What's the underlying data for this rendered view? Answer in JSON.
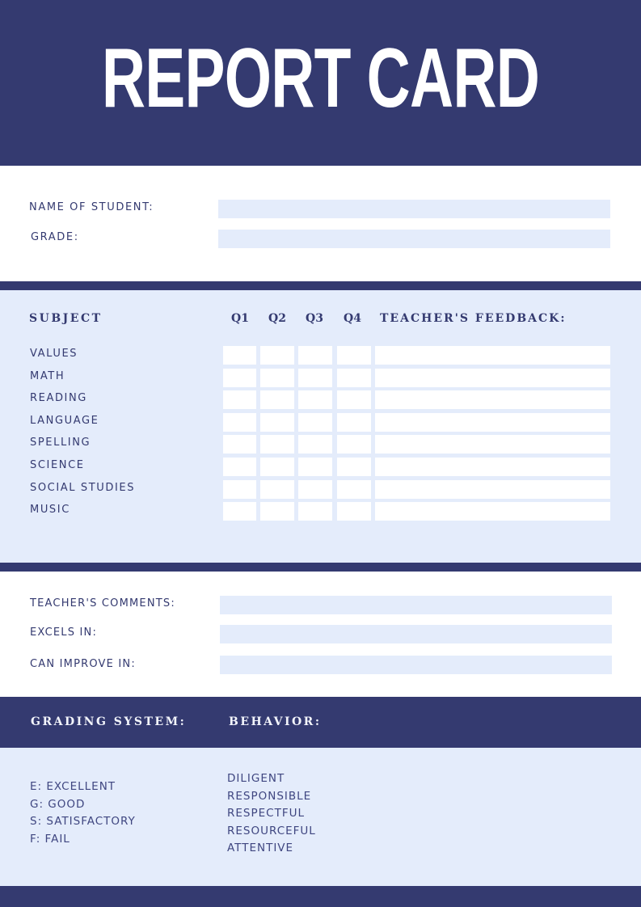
{
  "title": "REPORT CARD",
  "student": {
    "name_label": "NAME OF STUDENT:",
    "grade_label": "GRADE:"
  },
  "table": {
    "headers": {
      "subject": "SUBJECT",
      "q1": "Q1",
      "q2": "Q2",
      "q3": "Q3",
      "q4": "Q4",
      "feedback": "TEACHER'S FEEDBACK:"
    },
    "subjects": [
      "VALUES",
      "MATH",
      "READING",
      "LANGUAGE",
      "SPELLING",
      "SCIENCE",
      "SOCIAL STUDIES",
      "MUSIC"
    ]
  },
  "comments": {
    "teacher_comments_label": "TEACHER'S COMMENTS:",
    "excels_label": "EXCELS IN:",
    "improve_label": "CAN IMPROVE IN:"
  },
  "grading": {
    "title": "GRADING SYSTEM:",
    "items": [
      "E: EXCELLENT",
      "G: GOOD",
      "S: SATISFACTORY",
      "F: FAIL"
    ]
  },
  "behavior": {
    "title": "BEHAVIOR:",
    "items": [
      "DILIGENT",
      "RESPONSIBLE",
      "RESPECTFUL",
      "RESOURCEFUL",
      "ATTENTIVE"
    ]
  },
  "colors": {
    "navy": "#343a70",
    "light": "#e4ecfb"
  }
}
